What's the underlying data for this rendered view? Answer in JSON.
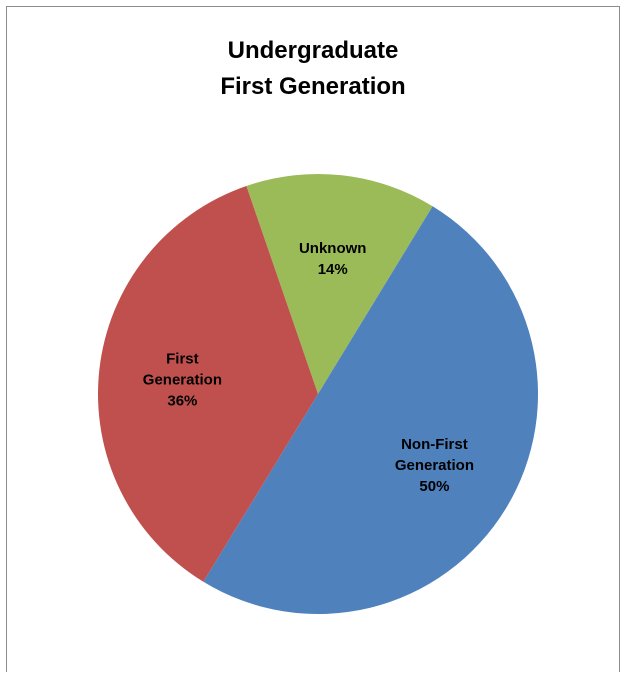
{
  "chart_data": {
    "type": "pie",
    "title_lines": [
      "Undergraduate",
      "First Generation"
    ],
    "slices": [
      {
        "label_lines": [
          "Unknown"
        ],
        "percent_label": "14%",
        "value": 14,
        "color": "#9BBB59"
      },
      {
        "label_lines": [
          "Non-First",
          "Generation"
        ],
        "percent_label": "50%",
        "value": 50,
        "color": "#4F81BD"
      },
      {
        "label_lines": [
          "First",
          "Generation"
        ],
        "percent_label": "36%",
        "value": 36,
        "color": "#C0504D"
      }
    ],
    "legend": "none",
    "data_labels": "inside"
  }
}
